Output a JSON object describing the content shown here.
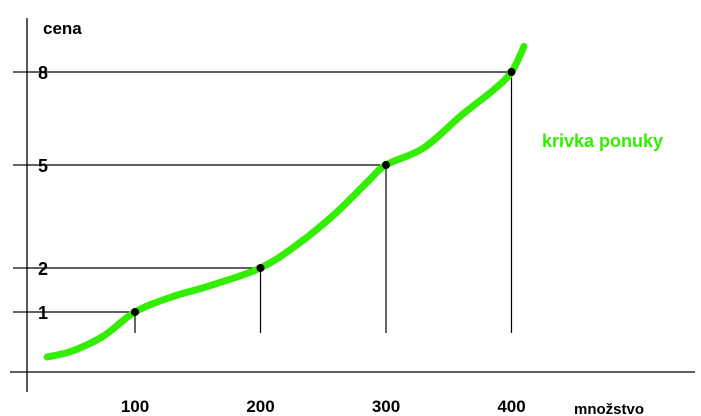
{
  "chart_data": {
    "type": "line",
    "ylabel": "cena",
    "xlabel": "množstvo",
    "x_ticks": [
      "100",
      "200",
      "300",
      "400"
    ],
    "y_ticks": [
      "1",
      "2",
      "5",
      "8"
    ],
    "series": [
      {
        "name": "krivka ponuky",
        "color": "#33ee00",
        "points": [
          {
            "x": 30,
            "y": 0.25
          },
          {
            "x": 50,
            "y": 0.35
          },
          {
            "x": 75,
            "y": 0.6
          },
          {
            "x": 100,
            "y": 1
          },
          {
            "x": 130,
            "y": 1.35
          },
          {
            "x": 160,
            "y": 1.6
          },
          {
            "x": 200,
            "y": 2
          },
          {
            "x": 230,
            "y": 2.7
          },
          {
            "x": 260,
            "y": 3.6
          },
          {
            "x": 285,
            "y": 4.5
          },
          {
            "x": 300,
            "y": 5
          },
          {
            "x": 330,
            "y": 5.55
          },
          {
            "x": 360,
            "y": 6.6
          },
          {
            "x": 385,
            "y": 7.4
          },
          {
            "x": 400,
            "y": 8
          },
          {
            "x": 410,
            "y": 8.8
          }
        ]
      }
    ],
    "marked_points": [
      {
        "x": 100,
        "y": 1
      },
      {
        "x": 200,
        "y": 2
      },
      {
        "x": 300,
        "y": 5
      },
      {
        "x": 400,
        "y": 8
      }
    ]
  }
}
